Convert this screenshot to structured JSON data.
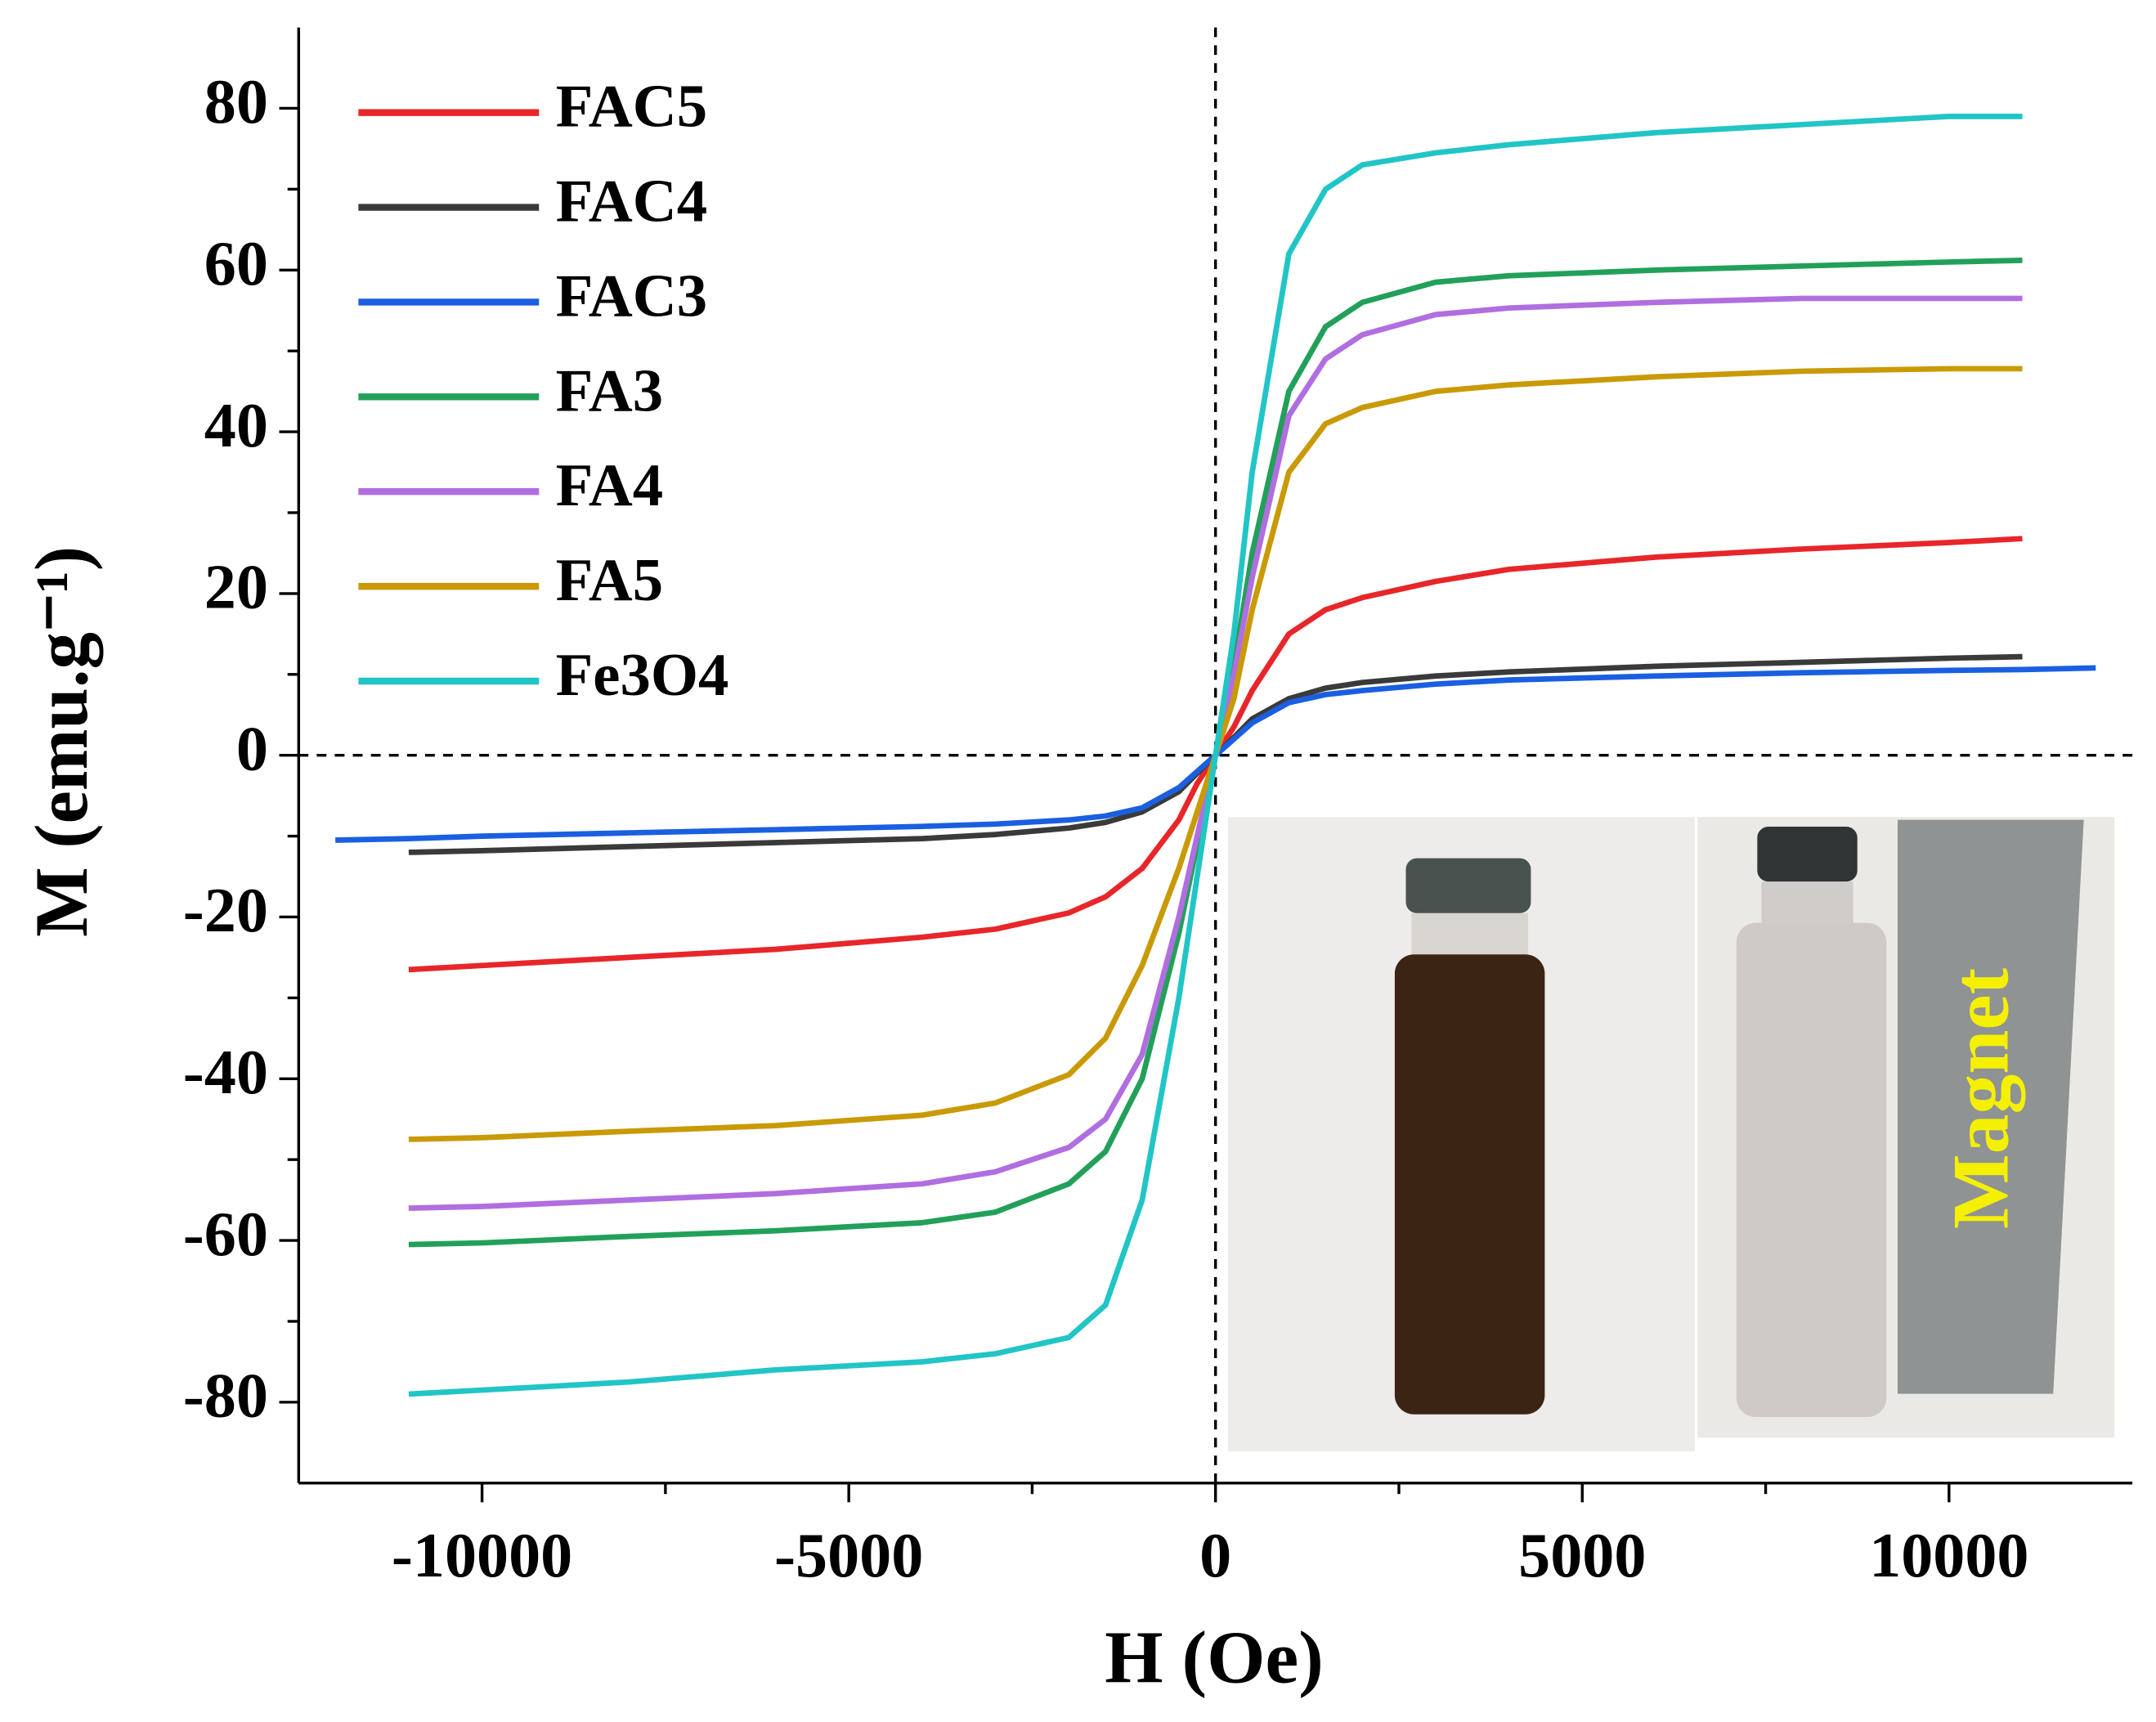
{
  "chart_data": {
    "type": "line",
    "xlabel": "H (Oe)",
    "ylabel": "M (emu.g⁻¹)",
    "x": [
      -12000,
      -11000,
      -10000,
      -8000,
      -6000,
      -4000,
      -3000,
      -2000,
      -1500,
      -1000,
      -500,
      -250,
      0,
      250,
      500,
      1000,
      1500,
      2000,
      3000,
      4000,
      6000,
      8000,
      10000,
      11000,
      12000
    ],
    "series": [
      {
        "name": "FAC5",
        "color": "#e8262a",
        "values": [
          null,
          -26.5,
          -26,
          -25,
          -24,
          -22.5,
          -21.5,
          -19.5,
          -17.5,
          -14,
          -8,
          -3.5,
          0,
          3.5,
          8,
          15,
          18,
          19.5,
          21.5,
          23,
          24.5,
          25.5,
          26.3,
          26.8,
          null
        ]
      },
      {
        "name": "FAC4",
        "color": "#3a3a3a",
        "values": [
          null,
          -12,
          -11.8,
          -11.3,
          -10.8,
          -10.3,
          -9.8,
          -9,
          -8.3,
          -7,
          -4.5,
          -2.2,
          0,
          2.2,
          4.5,
          7,
          8.3,
          9,
          9.8,
          10.3,
          11,
          11.5,
          12,
          12.2,
          null
        ]
      },
      {
        "name": "FAC3",
        "color": "#1a5fe0",
        "values": [
          -10.5,
          -10.3,
          -10,
          -9.6,
          -9.2,
          -8.8,
          -8.5,
          -8,
          -7.5,
          -6.5,
          -4,
          -2,
          0,
          2,
          4,
          6.5,
          7.5,
          8,
          8.8,
          9.3,
          9.8,
          10.2,
          10.5,
          10.6,
          10.8
        ]
      },
      {
        "name": "FA3",
        "color": "#22a05a",
        "values": [
          null,
          -60.5,
          -60.3,
          -59.5,
          -58.8,
          -57.8,
          -56.5,
          -53,
          -49,
          -40,
          -22,
          -11,
          0,
          11,
          25,
          45,
          53,
          56,
          58.5,
          59.3,
          60,
          60.5,
          61,
          61.2,
          null
        ]
      },
      {
        "name": "FA4",
        "color": "#b06ee0",
        "values": [
          null,
          -56,
          -55.8,
          -55,
          -54.2,
          -53,
          -51.5,
          -48.5,
          -45,
          -37,
          -20,
          -10,
          0,
          10,
          22,
          42,
          49,
          52,
          54.5,
          55.3,
          56,
          56.5,
          56.5,
          56.5,
          null
        ]
      },
      {
        "name": "FA5",
        "color": "#c99a06",
        "values": [
          null,
          -47.5,
          -47.3,
          -46.5,
          -45.8,
          -44.5,
          -43,
          -39.5,
          -35,
          -26,
          -14,
          -7,
          0,
          7,
          18,
          35,
          41,
          43,
          45,
          45.8,
          46.8,
          47.5,
          47.8,
          47.8,
          null
        ]
      },
      {
        "name": "Fe3O4",
        "color": "#22c5c5",
        "values": [
          null,
          -79,
          -78.5,
          -77.5,
          -76,
          -75,
          -74,
          -72,
          -68,
          -55,
          -30,
          -15,
          0,
          15,
          35,
          62,
          70,
          73,
          74.5,
          75.5,
          77,
          78,
          79,
          79,
          null
        ]
      }
    ],
    "xlim": [
      -12500,
      12500
    ],
    "ylim": [
      -90,
      90
    ],
    "xticks": [
      -10000,
      -5000,
      0,
      5000,
      10000
    ],
    "yticks": [
      -80,
      -60,
      -40,
      -20,
      0,
      20,
      40,
      60,
      80
    ],
    "xminor": [
      -7500,
      -2500,
      2500,
      7500
    ],
    "yminor": [
      -70,
      -50,
      -30,
      -10,
      10,
      30,
      50,
      70
    ],
    "legend": "upper left",
    "inset_label": "Magnet"
  }
}
